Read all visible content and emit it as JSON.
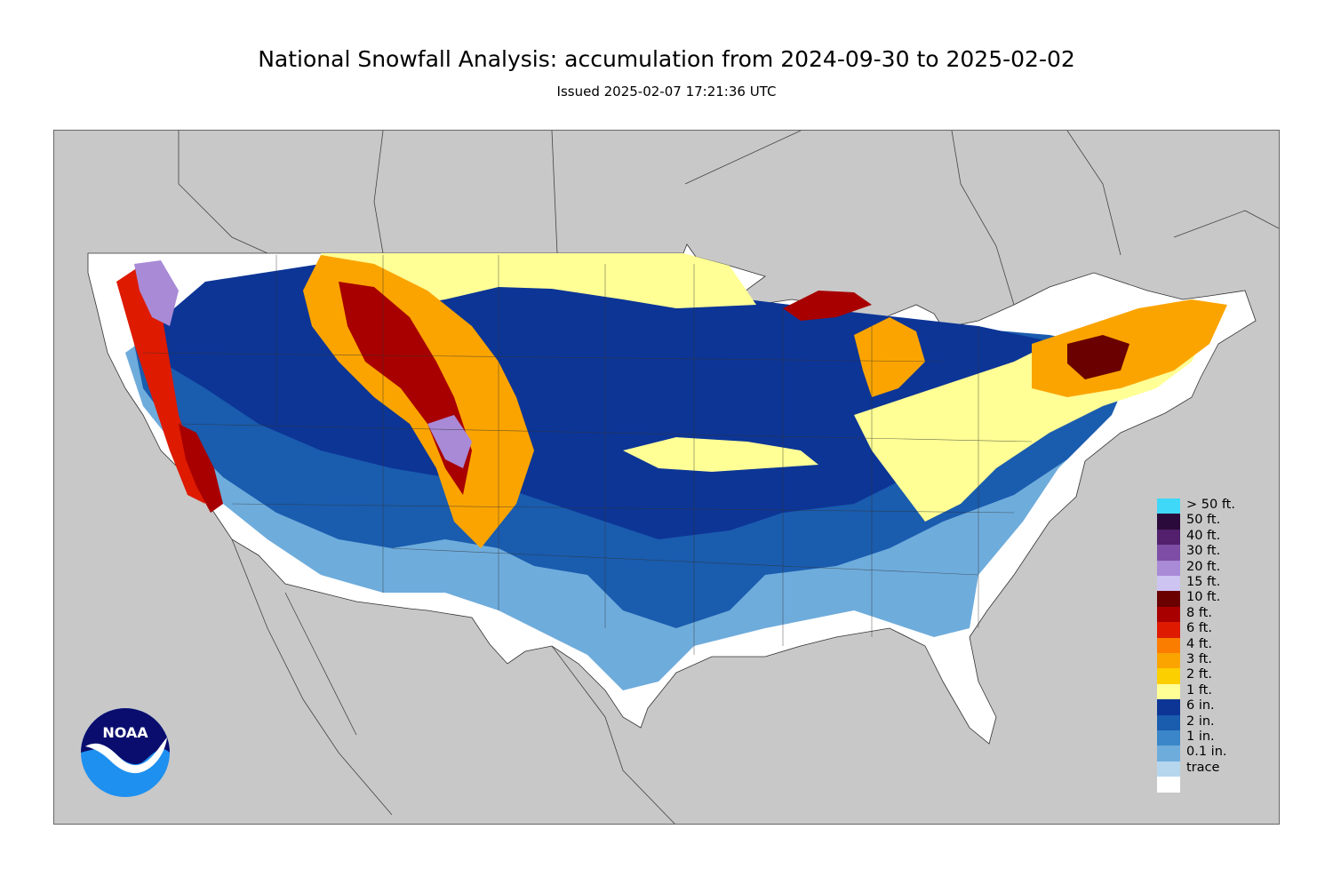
{
  "title": "National Snowfall Analysis: accumulation from 2024-09-30 to 2025-02-02",
  "subtitle": "Issued 2025-02-07 17:21:36 UTC",
  "logo": {
    "text": "NOAA",
    "icon": "noaa-logo-icon",
    "colors": [
      "#0a0d6e",
      "#1e90f0",
      "#ffffff"
    ]
  },
  "map": {
    "background": "#c8c8c8",
    "region": "Contiguous United States"
  },
  "legend": {
    "items": [
      {
        "label": "> 50 ft.",
        "color": "#40d8f8"
      },
      {
        "label": "50 ft.",
        "color": "#2a0a3a"
      },
      {
        "label": "40 ft.",
        "color": "#52206c"
      },
      {
        "label": "30 ft.",
        "color": "#7e4ea6"
      },
      {
        "label": "20 ft.",
        "color": "#a88ad6"
      },
      {
        "label": "15 ft.",
        "color": "#cdc4f2"
      },
      {
        "label": "10 ft.",
        "color": "#6a0000"
      },
      {
        "label": "8 ft.",
        "color": "#a80000"
      },
      {
        "label": "6 ft.",
        "color": "#de1a00"
      },
      {
        "label": "4 ft.",
        "color": "#fb7d00"
      },
      {
        "label": "3 ft.",
        "color": "#fba400"
      },
      {
        "label": "2 ft.",
        "color": "#fbcf00"
      },
      {
        "label": "1 ft.",
        "color": "#ffff96"
      },
      {
        "label": "6 in.",
        "color": "#0c3596"
      },
      {
        "label": "2 in.",
        "color": "#1a5cae"
      },
      {
        "label": "1 in.",
        "color": "#3a86c8"
      },
      {
        "label": "0.1 in.",
        "color": "#6eacdc"
      },
      {
        "label": "trace",
        "color": "#b6d6ee"
      },
      {
        "label": "",
        "color": "#ffffff"
      }
    ]
  }
}
